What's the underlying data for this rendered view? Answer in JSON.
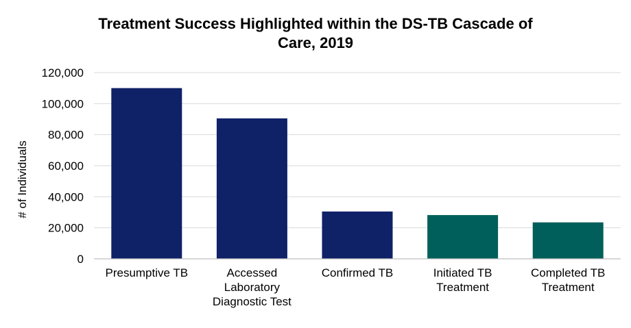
{
  "chart_data": {
    "type": "bar",
    "title": "Treatment Success Highlighted within the DS-TB Cascade of Care, 2019",
    "title_lines": [
      "Treatment Success Highlighted within the DS-TB Cascade of",
      "Care, 2019"
    ],
    "xlabel": "",
    "ylabel": "# of Individuals",
    "ylim": [
      0,
      120000
    ],
    "yticks": [
      0,
      20000,
      40000,
      60000,
      80000,
      100000,
      120000
    ],
    "ytick_labels": [
      "0",
      "20,000",
      "40,000",
      "60,000",
      "80,000",
      "100,000",
      "120,000"
    ],
    "grid": true,
    "legend": "none",
    "categories": [
      "Presumptive TB",
      "Accessed Laboratory Diagnostic Test",
      "Confirmed TB",
      "Initiated TB Treatment",
      "Completed TB Treatment"
    ],
    "category_lines": [
      [
        "Presumptive TB"
      ],
      [
        "Accessed",
        "Laboratory",
        "Diagnostic Test"
      ],
      [
        "Confirmed TB"
      ],
      [
        "Initiated TB",
        "Treatment"
      ],
      [
        "Completed TB",
        "Treatment"
      ]
    ],
    "values": [
      110000,
      90500,
      30500,
      28200,
      23500
    ],
    "bar_colors": [
      "#0f2167",
      "#0f2167",
      "#0f2167",
      "#005f5a",
      "#005f5a"
    ],
    "colors": {
      "grid": "#d9d9d9",
      "axis": "#bfbfbf",
      "text": "#000000"
    }
  }
}
